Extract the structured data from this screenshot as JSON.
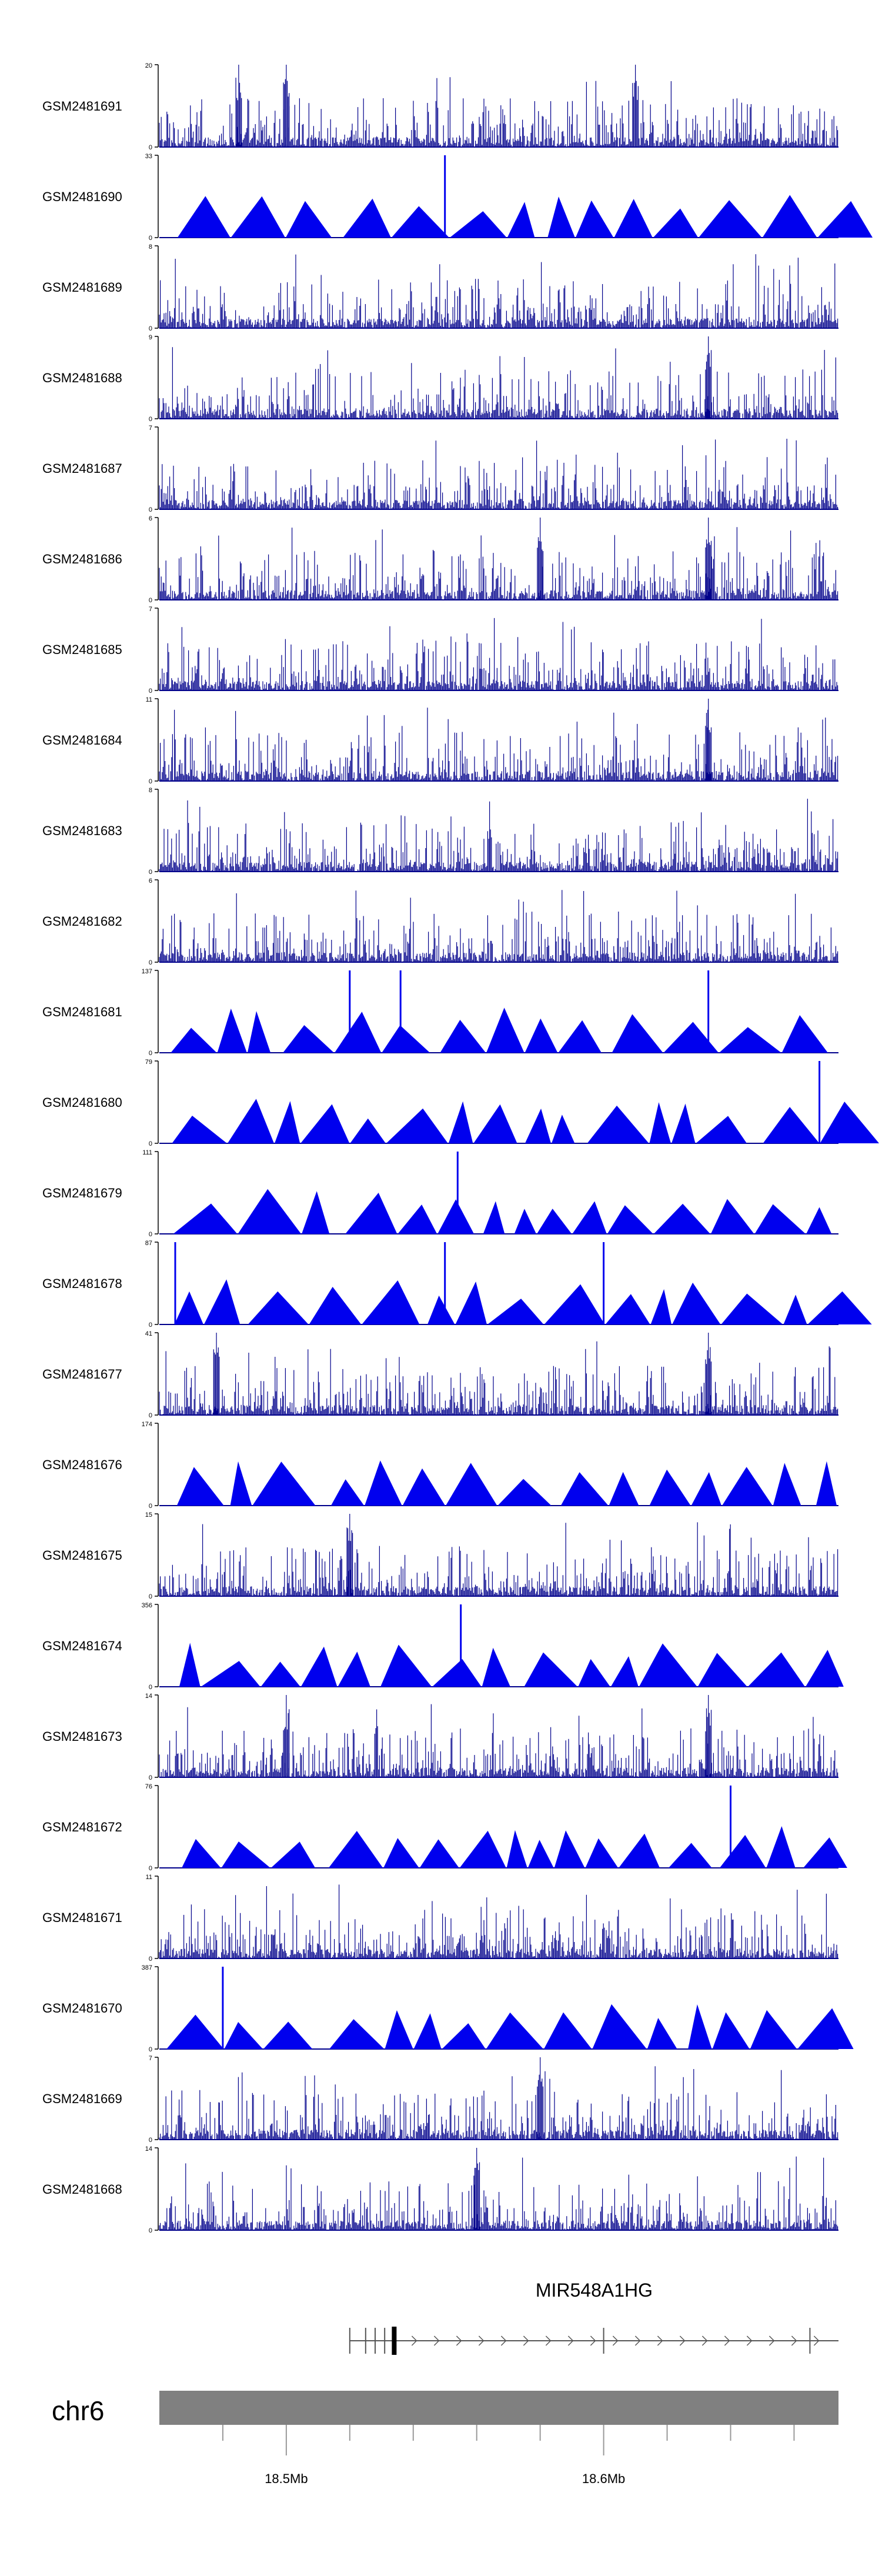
{
  "chart_data": {
    "type": "area",
    "title": "",
    "xlabel": "",
    "ylabel": "",
    "genome": {
      "chromosome": "chr6",
      "xlim_mb": [
        18.46,
        18.674
      ],
      "major_ticks_mb": [
        18.5,
        18.6
      ],
      "major_tick_labels": [
        "18.5Mb",
        "18.6Mb"
      ],
      "minor_ticks_mb": [
        18.48,
        18.52,
        18.54,
        18.56,
        18.58,
        18.62,
        18.64,
        18.66
      ]
    },
    "gene": {
      "name": "MIR548A1HG",
      "start_mb": 18.52,
      "end_mb": 18.674,
      "strand": "+",
      "exons_mb": [
        18.52,
        18.525,
        18.528,
        18.531,
        18.6,
        18.665
      ],
      "thick_exon_mb": 18.534
    },
    "tracks": [
      {
        "name": "GSM2481691",
        "ymax": 20,
        "style": "dense",
        "peaks_mb": [
          18.485,
          18.5,
          18.61
        ]
      },
      {
        "name": "GSM2481690",
        "ymax": 33,
        "style": "triangles",
        "peaks_mb": [
          18.55
        ]
      },
      {
        "name": "GSM2481689",
        "ymax": 8,
        "style": "dense",
        "peaks_mb": []
      },
      {
        "name": "GSM2481688",
        "ymax": 9,
        "style": "dense",
        "peaks_mb": [
          18.633
        ]
      },
      {
        "name": "GSM2481687",
        "ymax": 7,
        "style": "dense",
        "peaks_mb": []
      },
      {
        "name": "GSM2481686",
        "ymax": 6,
        "style": "dense",
        "peaks_mb": [
          18.58,
          18.633
        ]
      },
      {
        "name": "GSM2481685",
        "ymax": 7,
        "style": "dense",
        "peaks_mb": []
      },
      {
        "name": "GSM2481684",
        "ymax": 11,
        "style": "dense",
        "peaks_mb": [
          18.633
        ]
      },
      {
        "name": "GSM2481683",
        "ymax": 8,
        "style": "dense",
        "peaks_mb": []
      },
      {
        "name": "GSM2481682",
        "ymax": 6,
        "style": "dense",
        "peaks_mb": []
      },
      {
        "name": "GSM2481681",
        "ymax": 137,
        "style": "triangles",
        "peaks_mb": [
          18.52,
          18.536,
          18.633
        ]
      },
      {
        "name": "GSM2481680",
        "ymax": 79,
        "style": "triangles",
        "peaks_mb": [
          18.668
        ]
      },
      {
        "name": "GSM2481679",
        "ymax": 111,
        "style": "triangles",
        "peaks_mb": [
          18.554
        ]
      },
      {
        "name": "GSM2481678",
        "ymax": 87,
        "style": "triangles",
        "peaks_mb": [
          18.465,
          18.55,
          18.6
        ]
      },
      {
        "name": "GSM2481677",
        "ymax": 41,
        "style": "dense",
        "peaks_mb": [
          18.478,
          18.633
        ]
      },
      {
        "name": "GSM2481676",
        "ymax": 174,
        "style": "triangles",
        "peaks_mb": []
      },
      {
        "name": "GSM2481675",
        "ymax": 15,
        "style": "dense",
        "peaks_mb": [
          18.52
        ]
      },
      {
        "name": "GSM2481674",
        "ymax": 356,
        "style": "triangles",
        "peaks_mb": [
          18.555
        ]
      },
      {
        "name": "GSM2481673",
        "ymax": 14,
        "style": "dense",
        "peaks_mb": [
          18.5,
          18.633
        ]
      },
      {
        "name": "GSM2481672",
        "ymax": 76,
        "style": "triangles",
        "peaks_mb": [
          18.64
        ]
      },
      {
        "name": "GSM2481671",
        "ymax": 11,
        "style": "dense",
        "peaks_mb": []
      },
      {
        "name": "GSM2481670",
        "ymax": 387,
        "style": "triangles",
        "peaks_mb": [
          18.48
        ]
      },
      {
        "name": "GSM2481669",
        "ymax": 7,
        "style": "dense",
        "peaks_mb": [
          18.58
        ]
      },
      {
        "name": "GSM2481668",
        "ymax": 14,
        "style": "dense",
        "peaks_mb": [
          18.56
        ]
      }
    ]
  },
  "colors": {
    "signal": "#0000ee",
    "dense_signal": "#00008b",
    "axis": "#000000",
    "ideogram": "#808080",
    "gene": "#555555"
  }
}
